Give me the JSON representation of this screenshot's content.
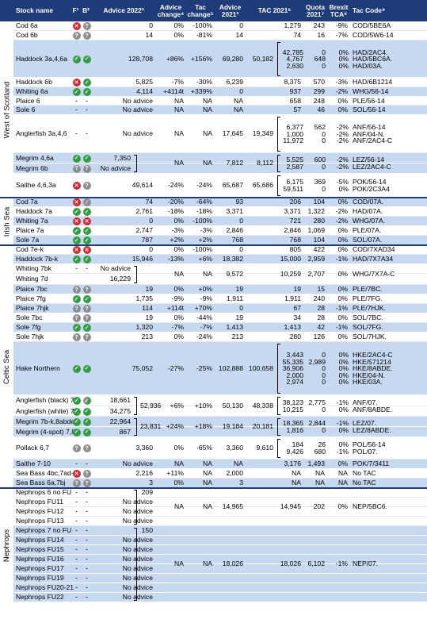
{
  "header": {
    "stock": "Stock name",
    "f": "F¹",
    "b": "B²",
    "advice": "Advice 2022³",
    "advice_change": "Advice change⁴",
    "tac_change": "Tac change⁵",
    "advice_2021": "Advice 2021³",
    "tac_2021": "TAC 2021⁶",
    "quota_2021": "Quota 2021⁷",
    "brexit": "Brexit TCA⁸",
    "tac_code": "Tac Code⁹"
  },
  "regions": [
    "West of Scotland",
    "Irish Sea",
    "Celtic Sea",
    "Nephrops"
  ],
  "rows": [
    {
      "name": "Cod 6a",
      "f": "red-x",
      "b": "grey-q",
      "adv": "0",
      "ac": "0%",
      "tc": "-100%",
      "a21": "0",
      "tac": "1,279",
      "q": "243",
      "br": "-9%",
      "code": "COD/5BE6A"
    },
    {
      "name": "Cod 6b",
      "f": "grey-q",
      "b": "grey-q",
      "adv": "14",
      "ac": "0%",
      "tc": "-81%",
      "a21": "14",
      "tac": "74",
      "q": "16",
      "br": "-7%",
      "code": "COD/5W6-14"
    },
    {
      "name": "Haddock 3a,4,6a",
      "f": "green",
      "b": "green",
      "adv": "128,708",
      "ac": "+86%",
      "tc": "+156%",
      "a21": "69,280",
      "tac": "50,182",
      "tacs": [
        "42,785",
        "4,767",
        "2,630"
      ],
      "qs": [
        "0",
        "648",
        "0"
      ],
      "brs": [
        "0%",
        "0%",
        "0%"
      ],
      "codes": [
        "HAD/2AC4.",
        "HAD/5BC6A.",
        "HAD/03A."
      ]
    },
    {
      "name": "Haddock 6b",
      "f": "red-x",
      "b": "green",
      "adv": "5,825",
      "ac": "-7%",
      "tc": "-30%",
      "a21": "6,239",
      "tac": "8,375",
      "q": "570",
      "br": "-3%",
      "code": "HAD/6B1214"
    },
    {
      "name": "Whiting 6a",
      "f": "green",
      "b": "green",
      "adv": "4,114",
      "ac": "+4114t",
      "tc": "+339%",
      "a21": "0",
      "tac": "937",
      "q": "299",
      "br": "-2%",
      "code": "WHG/56-14"
    },
    {
      "name": "Plaice 6",
      "f": "-",
      "b": "-",
      "adv": "No advice",
      "ac": "NA",
      "tc": "NA",
      "a21": "NA",
      "tac": "658",
      "q": "248",
      "br": "0%",
      "code": "PLE/56-14"
    },
    {
      "name": "Sole 6",
      "f": "-",
      "b": "-",
      "adv": "No advice",
      "ac": "NA",
      "tc": "NA",
      "a21": "NA",
      "tac": "57",
      "q": "46",
      "br": "0%",
      "code": "SOL/56-14"
    },
    {
      "name": "Anglerfish 3a,4,6",
      "f": "-",
      "b": "-",
      "adv": "No advice",
      "ac": "NA",
      "tc": "NA",
      "a21": "17,645",
      "tac": "19,349",
      "tacs": [
        "6,377",
        "1,000",
        "11,972"
      ],
      "qs": [
        "562",
        "0",
        "0"
      ],
      "brs": [
        "-2%",
        "-2%",
        "-2%"
      ],
      "codes": [
        "ANF/56-14",
        "ANF/04-N.",
        "ANF/2AC4-C"
      ]
    },
    {
      "name": "Megrim 4,6a",
      "f": "green",
      "b": "green",
      "adv": "7,350",
      "ac": "NA",
      "tc": "NA",
      "a21": "7,812",
      "tac": "8,112",
      "tacs": [
        "5,525",
        "2,587"
      ],
      "qs": [
        "600",
        "0"
      ],
      "brs": [
        "-2%",
        "-2%"
      ],
      "codes": [
        "LEZ/56-14",
        "LEZ/2AC4-C"
      ]
    },
    {
      "name": "Megrim 6b",
      "f": "grey-q",
      "b": "grey-q",
      "adv": "No advice"
    },
    {
      "name": "Saithe 4,6,3a",
      "f": "red-x",
      "b": "grey-q",
      "adv": "49,614",
      "ac": "-24%",
      "tc": "-24%",
      "a21": "65,687",
      "tac": "65,686",
      "tacs": [
        "6,175",
        "59,511"
      ],
      "qs": [
        "369",
        "0"
      ],
      "brs": [
        "-5%",
        "0%"
      ],
      "codes": [
        "POK/56-14",
        "POK/2C3A4"
      ]
    },
    {
      "name": "Cod 7a",
      "f": "red-x",
      "b": "grey-slash",
      "adv": "74",
      "ac": "-20%",
      "tc": "-64%",
      "a21": "93",
      "tac": "206",
      "q": "104",
      "br": "0%",
      "code": "COD/07A."
    },
    {
      "name": "Haddock 7a",
      "f": "green",
      "b": "green",
      "adv": "2,761",
      "ac": "-18%",
      "tc": "-18%",
      "a21": "3,371",
      "tac": "3,371",
      "q": "1,322",
      "br": "-2%",
      "code": "HAD/07A."
    },
    {
      "name": "Whiting 7a",
      "f": "red-x",
      "b": "red-x",
      "adv": "0",
      "ac": "0%",
      "tc": "-100%",
      "a21": "0",
      "tac": "721",
      "q": "280",
      "br": "-2%",
      "code": "WHG/07A."
    },
    {
      "name": "Plaice 7a",
      "f": "green",
      "b": "green",
      "adv": "2,747",
      "ac": "-3%",
      "tc": "-3%",
      "a21": "2,846",
      "tac": "2,846",
      "q": "1,069",
      "br": "0%",
      "code": "PLE/07A."
    },
    {
      "name": "Sole 7a",
      "f": "green",
      "b": "green",
      "adv": "787",
      "ac": "+2%",
      "tc": "+2%",
      "a21": "768",
      "tac": "768",
      "q": "104",
      "br": "0%",
      "code": "SOL/07A."
    },
    {
      "name": "Cod 7e-k",
      "f": "red-x",
      "b": "red-x",
      "adv": "0",
      "ac": "0%",
      "tc": "-100%",
      "a21": "0",
      "tac": "805",
      "q": "422",
      "br": "0%",
      "code": "COD/7XAD34"
    },
    {
      "name": "Haddock 7b-k",
      "f": "green",
      "b": "green",
      "adv": "15,946",
      "ac": "-13%",
      "tc": "+6%",
      "a21": "18,382",
      "tac": "15,000",
      "q": "2,959",
      "br": "-1%",
      "code": "HAD/7X7A34"
    },
    {
      "name": "Whiting 7bk",
      "f": "-",
      "b": "-",
      "adv": "No advice",
      "ac": "NA",
      "tc": "NA",
      "a21": "9,572",
      "tac": "10,259",
      "q": "2,707",
      "br": "0%",
      "code": "WHG/7X7A-C"
    },
    {
      "name": "Whiting 7d",
      "f": "",
      "b": "",
      "adv": "16,229"
    },
    {
      "name": "Plaice 7bc",
      "f": "grey-q",
      "b": "grey-q",
      "adv": "19",
      "ac": "0%",
      "tc": "+0%",
      "a21": "19",
      "tac": "19",
      "q": "15",
      "br": "0%",
      "code": "PLE/7BC."
    },
    {
      "name": "Plaice 7fg",
      "f": "green",
      "b": "green",
      "adv": "1,735",
      "ac": "-9%",
      "tc": "-9%",
      "a21": "1,911",
      "tac": "1,911",
      "q": "240",
      "br": "0%",
      "code": "PLE/7FG."
    },
    {
      "name": "Plaice 7hjk",
      "f": "grey-q",
      "b": "grey-q",
      "adv": "114",
      "ac": "+114t",
      "tc": "+70%",
      "a21": "0",
      "tac": "67",
      "q": "28",
      "br": "-1%",
      "code": "PLE/7HJK."
    },
    {
      "name": "Sole 7bc",
      "f": "grey-q",
      "b": "grey-q",
      "adv": "19",
      "ac": "0%",
      "tc": "-44%",
      "a21": "19",
      "tac": "34",
      "q": "28",
      "br": "0%",
      "code": "SOL/7BC."
    },
    {
      "name": "Sole 7fg",
      "f": "green",
      "b": "green",
      "adv": "1,320",
      "ac": "-7%",
      "tc": "-7%",
      "a21": "1,413",
      "tac": "1,413",
      "q": "42",
      "br": "-1%",
      "code": "SOL/7FG."
    },
    {
      "name": "Sole 7hjk",
      "f": "grey-q",
      "b": "grey-q",
      "adv": "213",
      "ac": "0%",
      "tc": "-24%",
      "a21": "213",
      "tac": "280",
      "q": "126",
      "br": "0%",
      "code": "SOL/7HJK."
    },
    {
      "name": "Hake Northern",
      "f": "green",
      "b": "green",
      "adv": "75,052",
      "ac": "-27%",
      "tc": "-25%",
      "a21": "102,888",
      "tac": "100,658",
      "tacs": [
        "3,443",
        "55,335",
        "36,906",
        "2,000",
        "2,974"
      ],
      "qs": [
        "0",
        "2,989",
        "0",
        "0",
        "0"
      ],
      "brs": [
        "0%",
        "0%",
        "0%",
        "0%",
        "0%"
      ],
      "codes": [
        "HKE/2AC4-C",
        "HKE/571214",
        "HKE/8ABDE.",
        "HKE/04-N.",
        "HKE/03A."
      ]
    },
    {
      "name": "Anglerfish (black) 7,8",
      "f": "green",
      "b": "half",
      "adv": "18,661",
      "total": "52,936",
      "ac": "+6%",
      "tc": "+10%",
      "a21": "50,130",
      "tac": "48,338",
      "tacs": [
        "38,123",
        "10,215"
      ],
      "qs": [
        "2,775",
        "0"
      ],
      "brs": [
        "-1%",
        "0%"
      ],
      "codes": [
        "ANF/07.",
        "ANF/8ABDE."
      ]
    },
    {
      "name": "Anglerfish (white) 7,8",
      "f": "green",
      "b": "green",
      "adv": "34,275"
    },
    {
      "name": "Megrim 7b-k,8abde",
      "f": "green",
      "b": "green",
      "adv": "22,964",
      "total": "23,831",
      "ac": "+24%",
      "tc": "+18%",
      "a21": "19,184",
      "tac": "20,181",
      "tacs": [
        "18,365",
        "1,816"
      ],
      "qs": [
        "2,844",
        "0"
      ],
      "brs": [
        "-1%",
        "0%"
      ],
      "codes": [
        "LEZ/07.",
        "LEZ/8ABDE."
      ]
    },
    {
      "name": "Megrim (4-spot) 7,8",
      "f": "green",
      "b": "green",
      "adv": "867"
    },
    {
      "name": "Pollack 6,7",
      "f": "grey-q",
      "b": "grey-q",
      "adv": "3,360",
      "ac": "0%",
      "tc": "-65%",
      "a21": "3,360",
      "tac": "9,610",
      "tacs": [
        "184",
        "9,426"
      ],
      "qs": [
        "26",
        "680"
      ],
      "brs": [
        "0%",
        "-1%"
      ],
      "codes": [
        "POL/56-14",
        "POL/07."
      ]
    },
    {
      "name": "Saithe 7-10",
      "f": "-",
      "b": "-",
      "adv": "No advice",
      "ac": "NA",
      "tc": "NA",
      "a21": "NA",
      "tac": "3,176",
      "q": "1,493",
      "br": "0%",
      "code": "POK/7/3411"
    },
    {
      "name": "Sea Bass 4bc,7ad-h",
      "f": "red-x",
      "b": "grey-q",
      "adv": "2,216",
      "ac": "+11%",
      "tc": "NA",
      "a21": "2,000",
      "tac": "NA",
      "q": "NA",
      "br": "NA",
      "code": "No TAC"
    },
    {
      "name": "Sea Bass 6a,7bj",
      "f": "grey-q",
      "b": "grey-q",
      "adv": "3",
      "ac": "0%",
      "tc": "NA",
      "a21": "3",
      "tac": "NA",
      "q": "NA",
      "br": "NA",
      "code": "No TAC"
    },
    {
      "name": "Nephrops 6 no FU",
      "f": "-",
      "b": "-",
      "adv": "209",
      "ac": "NA",
      "tc": "NA",
      "a21": "14,965",
      "tac": "14,945",
      "q": "202",
      "br": "0%",
      "code": "NEP/5BC6."
    },
    {
      "name": "Nephrops FU11",
      "f": "-",
      "b": "-",
      "adv": "No advice"
    },
    {
      "name": "Nephrops FU12",
      "f": "-",
      "b": "-",
      "adv": "No advice"
    },
    {
      "name": "Nephrops FU13",
      "f": "-",
      "b": "-",
      "adv": "No advice"
    },
    {
      "name": "Nephrops 7 no FU",
      "f": "-",
      "b": "-",
      "adv": "150",
      "ac": "NA",
      "tc": "NA",
      "a21": "18,026",
      "tac": "18,026",
      "q": "6,102",
      "br": "-1%",
      "code": "NEP/07."
    },
    {
      "name": "Nephrops FU14",
      "f": "-",
      "b": "-",
      "adv": "No advice"
    },
    {
      "name": "Nephrops FU15",
      "f": "-",
      "b": "-",
      "adv": "No advice"
    },
    {
      "name": "Nephrops FU16",
      "f": "-",
      "b": "-",
      "adv": "No advice"
    },
    {
      "name": "Nephrops FU17",
      "f": "-",
      "b": "-",
      "adv": "No advice"
    },
    {
      "name": "Nephrops FU19",
      "f": "-",
      "b": "-",
      "adv": "No advice"
    },
    {
      "name": "Nephrops FU20-21",
      "f": "-",
      "b": "-",
      "adv": "No advice"
    },
    {
      "name": "Nephrops FU22",
      "f": "-",
      "b": "-",
      "adv": "No advice"
    }
  ],
  "colors": {
    "header": "#1f3c7a",
    "band": "#c6d9f0",
    "green": "#2e9e3f",
    "red": "#d6262f",
    "grey": "#8d8d8d"
  }
}
